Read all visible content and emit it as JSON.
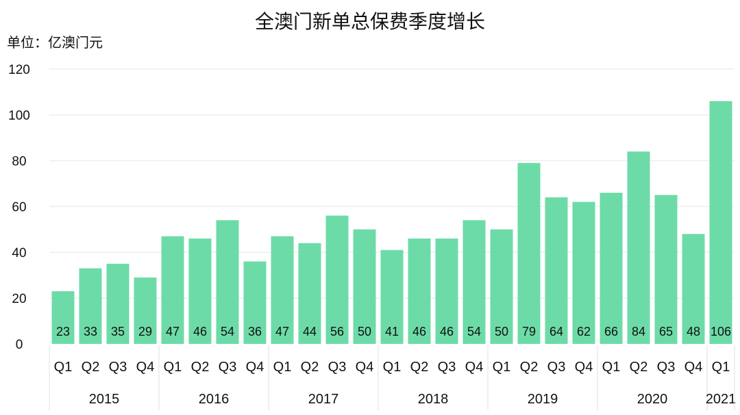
{
  "chart_data": {
    "type": "bar",
    "title": "全澳门新单总保费季度增长",
    "unit_label": "单位：亿澳门元",
    "ylim": [
      0,
      120
    ],
    "yticks": [
      0,
      20,
      40,
      60,
      80,
      100,
      120
    ],
    "grid": true,
    "categories": [
      "Q1",
      "Q2",
      "Q3",
      "Q4",
      "Q1",
      "Q2",
      "Q3",
      "Q4",
      "Q1",
      "Q2",
      "Q3",
      "Q4",
      "Q1",
      "Q2",
      "Q3",
      "Q4",
      "Q1",
      "Q2",
      "Q3",
      "Q4",
      "Q1",
      "Q2",
      "Q3",
      "Q4",
      "Q1"
    ],
    "groups": [
      {
        "label": "2015",
        "count": 4
      },
      {
        "label": "2016",
        "count": 4
      },
      {
        "label": "2017",
        "count": 4
      },
      {
        "label": "2018",
        "count": 4
      },
      {
        "label": "2019",
        "count": 4
      },
      {
        "label": "2020",
        "count": 4
      },
      {
        "label": "2021",
        "count": 1
      }
    ],
    "values": [
      23,
      33,
      35,
      29,
      47,
      46,
      54,
      36,
      47,
      44,
      56,
      50,
      41,
      46,
      46,
      54,
      50,
      79,
      64,
      62,
      66,
      84,
      65,
      48,
      106
    ],
    "bar_color": "#6ddba8"
  }
}
